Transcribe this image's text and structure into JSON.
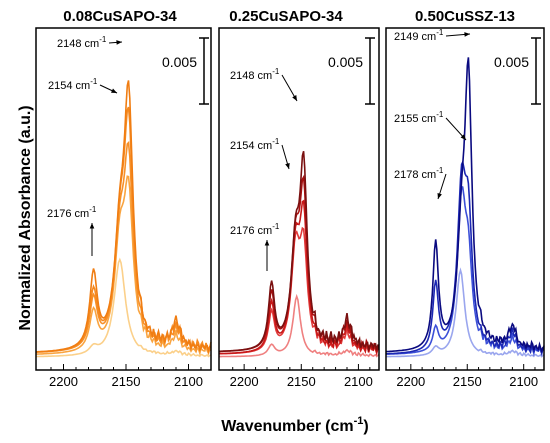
{
  "figure": {
    "ylabel": "Normalized Absorbance (a.u.)",
    "xlabel": "Wavenumber",
    "xlabel_unit": "(cm",
    "xlabel_sup": "-1",
    "xlabel_close": ")"
  },
  "chart_data": [
    {
      "type": "line",
      "title": "0.08CuSAPO-34",
      "xlim": [
        2222,
        2082
      ],
      "ylim": [
        0,
        0.0187
      ],
      "x_ticks": [
        2200,
        2150,
        2100
      ],
      "x_tick_labels": [
        "2200",
        "2150",
        "2100"
      ],
      "scale_bar": {
        "label": "0.005",
        "value": 0.005
      },
      "annotations": [
        {
          "label": "2148 cm",
          "sup": "-1",
          "x": 2148
        },
        {
          "label": "2154 cm",
          "sup": "-1",
          "x": 2154
        },
        {
          "label": "2176 cm",
          "sup": "-1",
          "x": 2176
        }
      ],
      "colors": [
        "#fbd08a",
        "#f9a440",
        "#f79028",
        "#f5891f",
        "#f07d12"
      ],
      "series": [
        {
          "bands": [
            {
              "c": 2155,
              "a": 0.0055,
              "w": 5.5
            },
            {
              "c": 2176,
              "a": 0.0004,
              "w": 4
            },
            {
              "c": 2110,
              "a": 0.0002,
              "w": 4
            }
          ],
          "baseline": 0.0001,
          "lw": 0.0001
        },
        {
          "bands": [
            {
              "c": 2148,
              "a": 0.0082,
              "w": 4.5
            },
            {
              "c": 2155,
              "a": 0.0055,
              "w": 5
            },
            {
              "c": 2176,
              "a": 0.0022,
              "w": 3.8
            },
            {
              "c": 2110,
              "a": 0.0008,
              "w": 4
            }
          ],
          "baseline": 0.0002,
          "lw": 0.0003
        },
        {
          "bands": [
            {
              "c": 2148,
              "a": 0.01,
              "w": 4.5
            },
            {
              "c": 2155,
              "a": 0.0055,
              "w": 5
            },
            {
              "c": 2176,
              "a": 0.0028,
              "w": 3.8
            },
            {
              "c": 2110,
              "a": 0.001,
              "w": 4
            }
          ],
          "baseline": 0.0003,
          "lw": 0.0004
        },
        {
          "bands": [
            {
              "c": 2148,
              "a": 0.012,
              "w": 4.5
            },
            {
              "c": 2155,
              "a": 0.0055,
              "w": 5
            },
            {
              "c": 2176,
              "a": 0.0032,
              "w": 3.8
            },
            {
              "c": 2110,
              "a": 0.0012,
              "w": 4
            }
          ],
          "baseline": 0.0003,
          "lw": 0.0004
        },
        {
          "bands": [
            {
              "c": 2148,
              "a": 0.0135,
              "w": 4.3
            },
            {
              "c": 2155,
              "a": 0.0055,
              "w": 5
            },
            {
              "c": 2176,
              "a": 0.0042,
              "w": 3.6
            },
            {
              "c": 2110,
              "a": 0.0014,
              "w": 4
            }
          ],
          "baseline": 0.0003,
          "lw": 0.0004
        }
      ]
    },
    {
      "type": "line",
      "title": "0.25CuSAPO-34",
      "xlim": [
        2222,
        2082
      ],
      "ylim": [
        0,
        0.0154
      ],
      "x_ticks": [
        2200,
        2150,
        2100
      ],
      "x_tick_labels": [
        "2200",
        "2150",
        "2100"
      ],
      "scale_bar": {
        "label": "0.005",
        "value": 0.005
      },
      "annotations": [
        {
          "label": "2148 cm",
          "sup": "-1",
          "x": 2148
        },
        {
          "label": "2154 cm",
          "sup": "-1",
          "x": 2154
        },
        {
          "label": "2176 cm",
          "sup": "-1",
          "x": 2176
        }
      ],
      "colors": [
        "#ef8080",
        "#e03a3a",
        "#c81818",
        "#a81010",
        "#7a1010"
      ],
      "series": [
        {
          "bands": [
            {
              "c": 2154,
              "a": 0.0028,
              "w": 4
            },
            {
              "c": 2176,
              "a": 0.0005,
              "w": 3.5
            },
            {
              "c": 2110,
              "a": 0.0002,
              "w": 4
            }
          ],
          "baseline": 0.0001,
          "lw": 0.0001
        },
        {
          "bands": [
            {
              "c": 2148,
              "a": 0.0045,
              "w": 4
            },
            {
              "c": 2155,
              "a": 0.0045,
              "w": 4.5
            },
            {
              "c": 2176,
              "a": 0.0018,
              "w": 3.2
            },
            {
              "c": 2110,
              "a": 0.0008,
              "w": 4
            }
          ],
          "baseline": 0.0002,
          "lw": 0.0003
        },
        {
          "bands": [
            {
              "c": 2148,
              "a": 0.0058,
              "w": 4
            },
            {
              "c": 2155,
              "a": 0.0045,
              "w": 4.5
            },
            {
              "c": 2176,
              "a": 0.0022,
              "w": 3.2
            },
            {
              "c": 2110,
              "a": 0.001,
              "w": 4
            }
          ],
          "baseline": 0.0002,
          "lw": 0.0003
        },
        {
          "bands": [
            {
              "c": 2148,
              "a": 0.0068,
              "w": 4
            },
            {
              "c": 2155,
              "a": 0.0045,
              "w": 4.5
            },
            {
              "c": 2176,
              "a": 0.0026,
              "w": 3.2
            },
            {
              "c": 2110,
              "a": 0.0011,
              "w": 4
            }
          ],
          "baseline": 0.0003,
          "lw": 0.0003
        },
        {
          "bands": [
            {
              "c": 2148,
              "a": 0.008,
              "w": 3.8
            },
            {
              "c": 2155,
              "a": 0.0045,
              "w": 4.5
            },
            {
              "c": 2176,
              "a": 0.003,
              "w": 3.2
            },
            {
              "c": 2110,
              "a": 0.0012,
              "w": 4
            }
          ],
          "baseline": 0.0003,
          "lw": 0.0004
        }
      ]
    },
    {
      "type": "line",
      "title": "0.50CuSSZ-13",
      "xlim": [
        2222,
        2082
      ],
      "ylim": [
        0,
        0.0172
      ],
      "x_ticks": [
        2200,
        2150,
        2100
      ],
      "x_tick_labels": [
        "2200",
        "2150",
        "2100"
      ],
      "scale_bar": {
        "label": "0.005",
        "value": 0.005
      },
      "annotations": [
        {
          "label": "2149 cm",
          "sup": "-1",
          "x": 2149
        },
        {
          "label": "2155 cm",
          "sup": "-1",
          "x": 2155
        },
        {
          "label": "2178 cm",
          "sup": "-1",
          "x": 2178
        }
      ],
      "colors": [
        "#9aa6ee",
        "#3c50d8",
        "#1c28b4",
        "#0a0a80"
      ],
      "series": [
        {
          "bands": [
            {
              "c": 2156,
              "a": 0.0045,
              "w": 4.5
            },
            {
              "c": 2178,
              "a": 0.0004,
              "w": 3.5
            },
            {
              "c": 2110,
              "a": 0.0002,
              "w": 4
            }
          ],
          "baseline": 0.0001,
          "lw": 0.0001
        },
        {
          "bands": [
            {
              "c": 2149,
              "a": 0.004,
              "w": 4
            },
            {
              "c": 2155,
              "a": 0.0075,
              "w": 4.5
            },
            {
              "c": 2178,
              "a": 0.0012,
              "w": 3
            },
            {
              "c": 2110,
              "a": 0.0006,
              "w": 4
            }
          ],
          "baseline": 0.0002,
          "lw": 0.0003
        },
        {
          "bands": [
            {
              "c": 2149,
              "a": 0.006,
              "w": 4
            },
            {
              "c": 2155,
              "a": 0.008,
              "w": 4.5
            },
            {
              "c": 2178,
              "a": 0.0035,
              "w": 3
            },
            {
              "c": 2110,
              "a": 0.0009,
              "w": 4
            }
          ],
          "baseline": 0.0002,
          "lw": 0.0003
        },
        {
          "bands": [
            {
              "c": 2149,
              "a": 0.0135,
              "w": 3.8
            },
            {
              "c": 2155,
              "a": 0.005,
              "w": 4.5
            },
            {
              "c": 2178,
              "a": 0.0055,
              "w": 3
            },
            {
              "c": 2110,
              "a": 0.0011,
              "w": 4
            }
          ],
          "baseline": 0.0003,
          "lw": 0.0003
        }
      ]
    }
  ]
}
